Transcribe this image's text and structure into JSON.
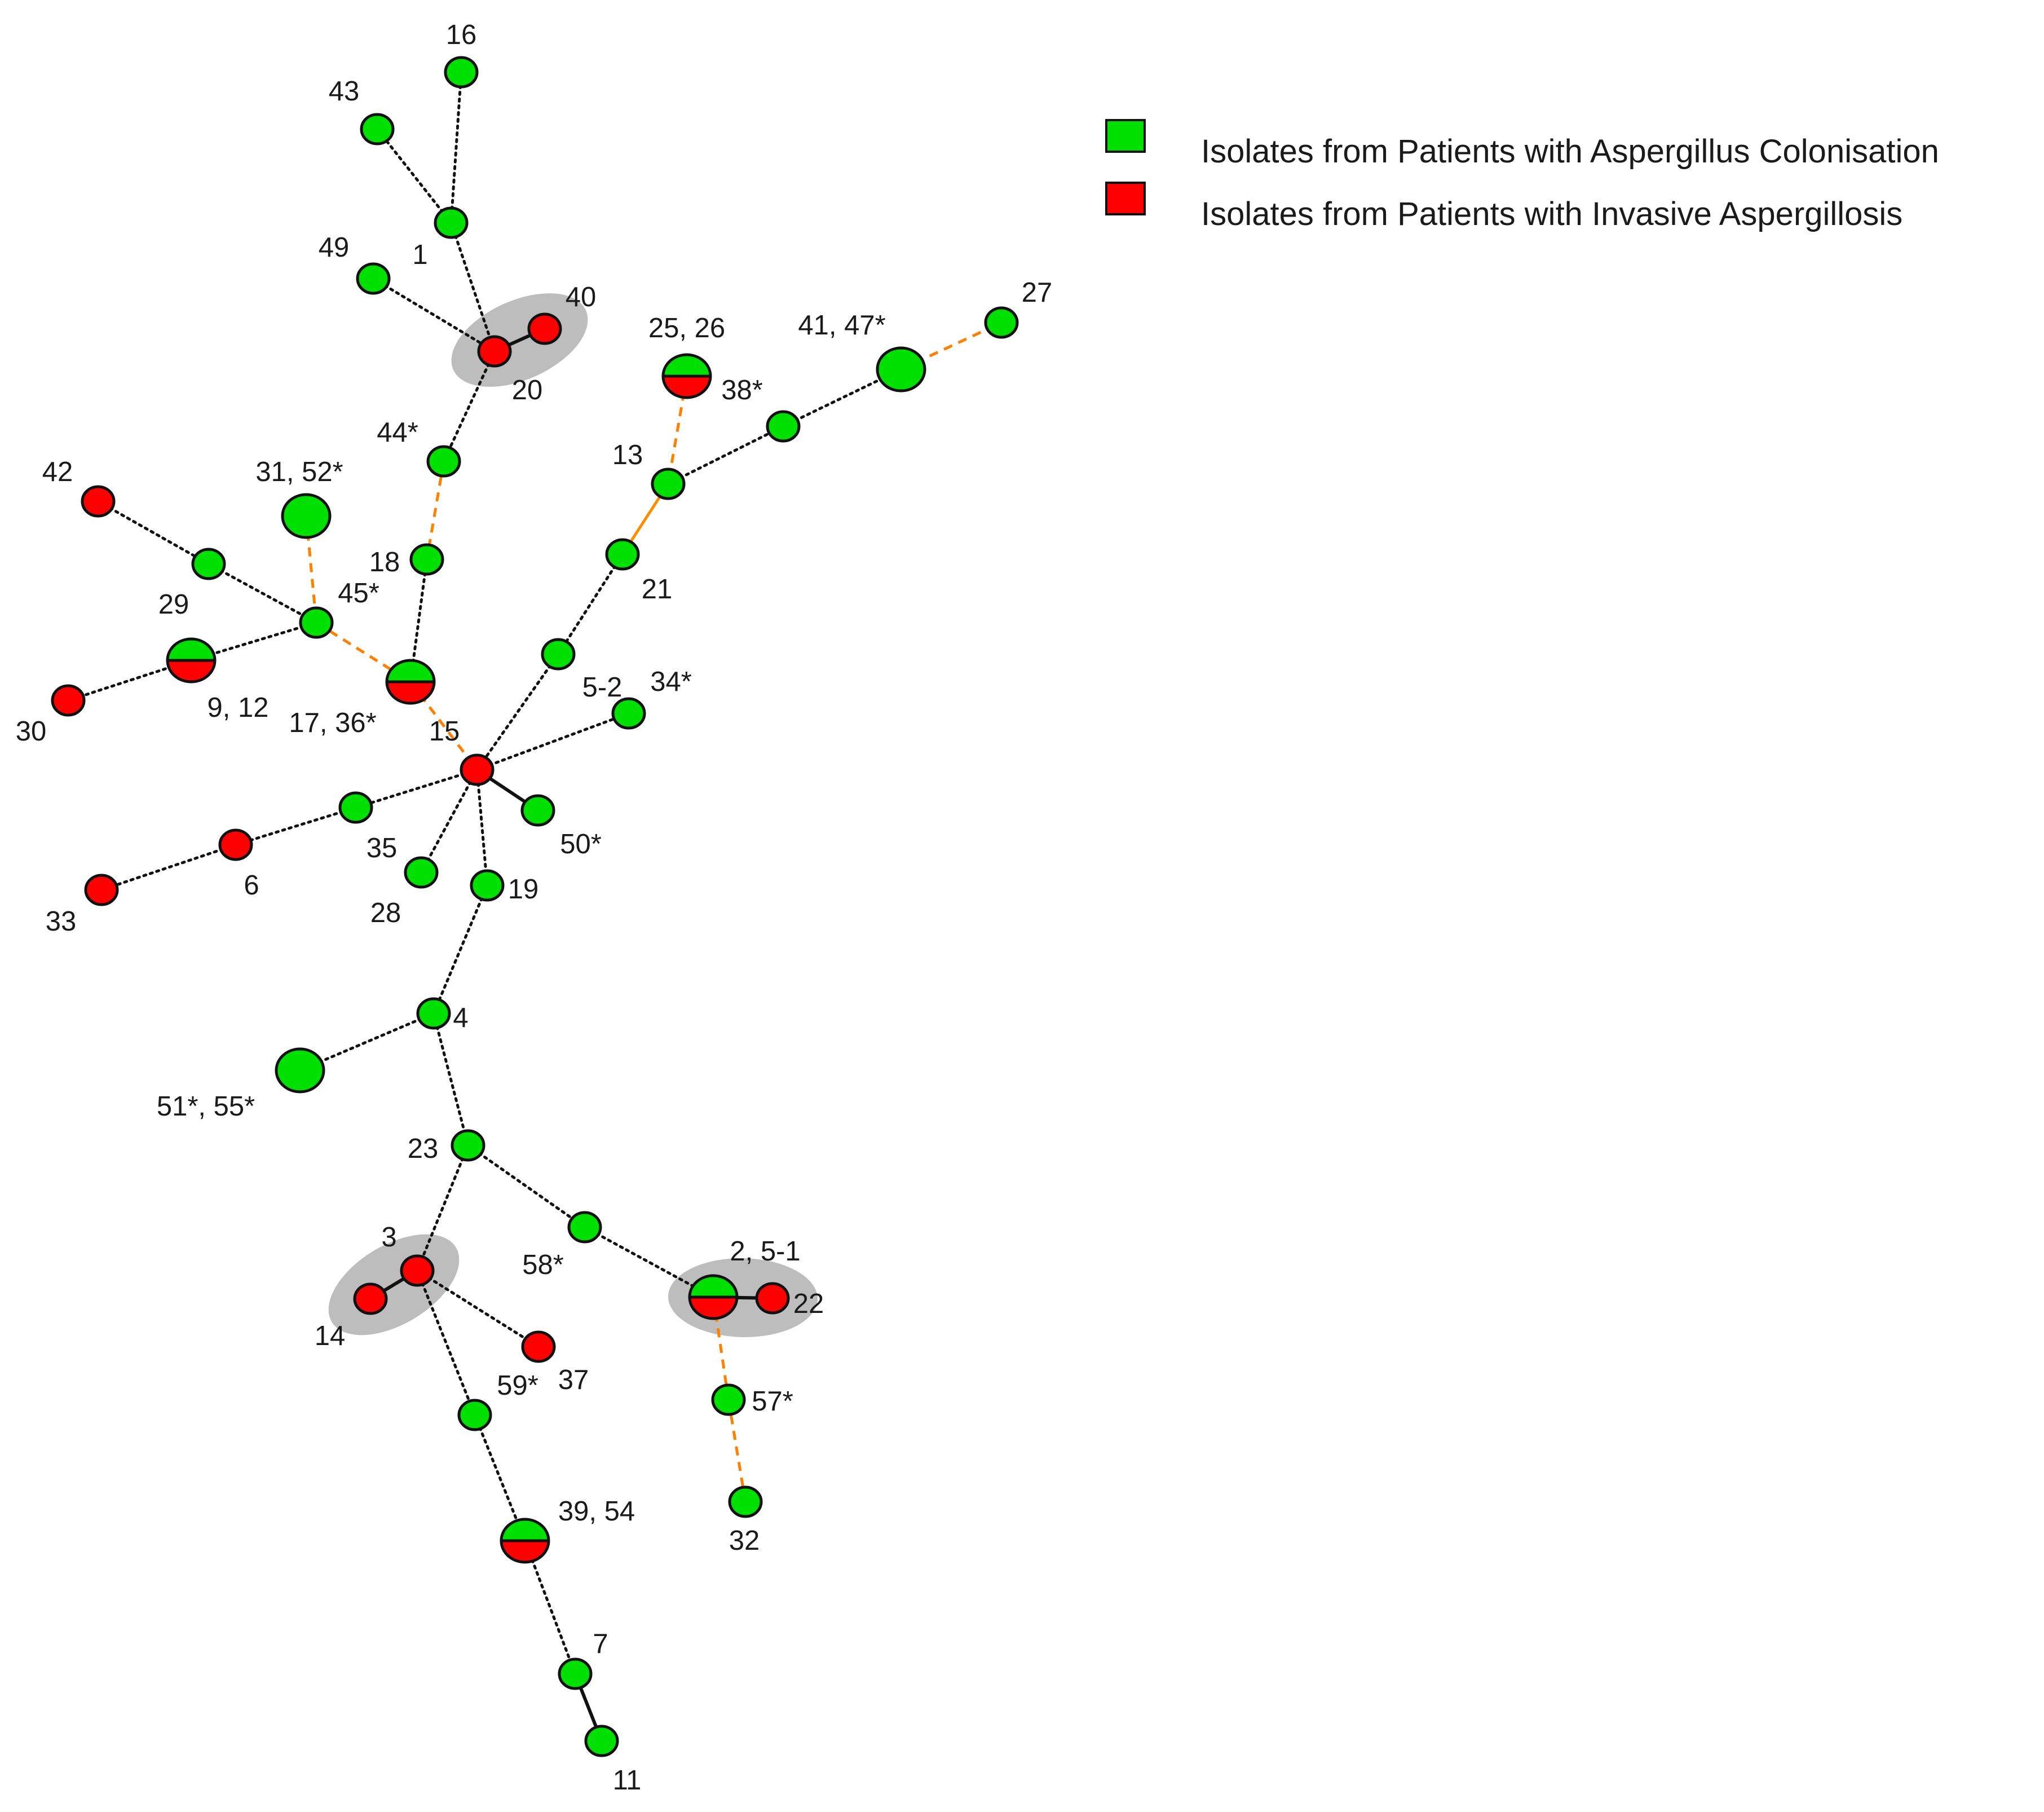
{
  "colors": {
    "colonisation": "#00e000",
    "invasive": "#ff0000",
    "cluster_halo": "#bdbdbd",
    "edge_dotted": "#111111",
    "edge_solid": "#111111",
    "edge_dashed": "#ff7f00",
    "edge_orange_solid": "#ff8c00"
  },
  "legend": {
    "items": [
      {
        "color": "#00e000",
        "label": "Isolates from Patients with Aspergillus Colonisation"
      },
      {
        "color": "#ff0000",
        "label": "Isolates from Patients with Invasive Aspergillosis"
      }
    ]
  },
  "nodes": [
    {
      "id": "16",
      "label": "16",
      "type": "colonisation"
    },
    {
      "id": "43",
      "label": "43",
      "type": "colonisation"
    },
    {
      "id": "1",
      "label": "1",
      "type": "colonisation"
    },
    {
      "id": "49",
      "label": "49",
      "type": "colonisation"
    },
    {
      "id": "20",
      "label": "20",
      "type": "invasive"
    },
    {
      "id": "40",
      "label": "40",
      "type": "invasive"
    },
    {
      "id": "44",
      "label": "44*",
      "type": "colonisation"
    },
    {
      "id": "18",
      "label": "18",
      "type": "colonisation"
    },
    {
      "id": "42",
      "label": "42",
      "type": "invasive"
    },
    {
      "id": "29",
      "label": "29",
      "type": "colonisation"
    },
    {
      "id": "3152",
      "label": "31, 52*",
      "type": "colonisation"
    },
    {
      "id": "45",
      "label": "45*",
      "type": "colonisation"
    },
    {
      "id": "912",
      "label": "9, 12",
      "type": "mixed"
    },
    {
      "id": "30",
      "label": "30",
      "type": "invasive"
    },
    {
      "id": "1736",
      "label": "17, 36*",
      "type": "mixed"
    },
    {
      "id": "15",
      "label": "15",
      "type": "invasive"
    },
    {
      "id": "2526",
      "label": "25, 26",
      "type": "mixed"
    },
    {
      "id": "38",
      "label": "38*",
      "type": "none"
    },
    {
      "id": "13",
      "label": "13",
      "type": "colonisation"
    },
    {
      "id": "m1",
      "label": "",
      "type": "colonisation"
    },
    {
      "id": "4147",
      "label": "41, 47*",
      "type": "colonisation"
    },
    {
      "id": "27",
      "label": "27",
      "type": "colonisation"
    },
    {
      "id": "21",
      "label": "21",
      "type": "colonisation"
    },
    {
      "id": "52b",
      "label": "5-2",
      "type": "colonisation"
    },
    {
      "id": "34",
      "label": "34*",
      "type": "colonisation"
    },
    {
      "id": "50",
      "label": "50*",
      "type": "colonisation"
    },
    {
      "id": "35",
      "label": "35",
      "type": "colonisation"
    },
    {
      "id": "6",
      "label": "6",
      "type": "invasive"
    },
    {
      "id": "33",
      "label": "33",
      "type": "invasive"
    },
    {
      "id": "28",
      "label": "28",
      "type": "colonisation"
    },
    {
      "id": "19",
      "label": "19",
      "type": "colonisation"
    },
    {
      "id": "4",
      "label": "4",
      "type": "colonisation"
    },
    {
      "id": "5155",
      "label": "51*, 55*",
      "type": "colonisation"
    },
    {
      "id": "23",
      "label": "23",
      "type": "colonisation"
    },
    {
      "id": "58",
      "label": "58*",
      "type": "colonisation"
    },
    {
      "id": "251",
      "label": "2, 5-1",
      "type": "mixed"
    },
    {
      "id": "22",
      "label": "22",
      "type": "invasive"
    },
    {
      "id": "3",
      "label": "3",
      "type": "invasive"
    },
    {
      "id": "14",
      "label": "14",
      "type": "invasive"
    },
    {
      "id": "37",
      "label": "37",
      "type": "invasive"
    },
    {
      "id": "59",
      "label": "59*",
      "type": "colonisation"
    },
    {
      "id": "57",
      "label": "57*",
      "type": "colonisation"
    },
    {
      "id": "32",
      "label": "32",
      "type": "colonisation"
    },
    {
      "id": "3954",
      "label": "39, 54",
      "type": "mixed"
    },
    {
      "id": "7",
      "label": "7",
      "type": "colonisation"
    },
    {
      "id": "11",
      "label": "11",
      "type": "colonisation"
    }
  ],
  "edges": [
    {
      "from": "1",
      "to": "16",
      "style": "dotted"
    },
    {
      "from": "1",
      "to": "43",
      "style": "dotted"
    },
    {
      "from": "1",
      "to": "20",
      "style": "dotted"
    },
    {
      "from": "49",
      "to": "20",
      "style": "dotted"
    },
    {
      "from": "20",
      "to": "40",
      "style": "solid"
    },
    {
      "from": "20",
      "to": "44",
      "style": "dotted"
    },
    {
      "from": "44",
      "to": "18",
      "style": "dashed"
    },
    {
      "from": "18",
      "to": "1736",
      "style": "dotted"
    },
    {
      "from": "42",
      "to": "29",
      "style": "dotted"
    },
    {
      "from": "29",
      "to": "45",
      "style": "dotted"
    },
    {
      "from": "3152",
      "to": "45",
      "style": "dashed"
    },
    {
      "from": "45",
      "to": "912",
      "style": "dotted"
    },
    {
      "from": "912",
      "to": "30",
      "style": "dotted"
    },
    {
      "from": "45",
      "to": "1736",
      "style": "dashed"
    },
    {
      "from": "1736",
      "to": "15",
      "style": "dashed"
    },
    {
      "from": "2526",
      "to": "13",
      "style": "dashed"
    },
    {
      "from": "13",
      "to": "m1",
      "style": "dotted"
    },
    {
      "from": "m1",
      "to": "4147",
      "style": "dotted"
    },
    {
      "from": "4147",
      "to": "27",
      "style": "dashed"
    },
    {
      "from": "13",
      "to": "21",
      "style": "orange"
    },
    {
      "from": "21",
      "to": "52b",
      "style": "dotted"
    },
    {
      "from": "52b",
      "to": "15",
      "style": "dotted"
    },
    {
      "from": "15",
      "to": "34",
      "style": "dotted"
    },
    {
      "from": "15",
      "to": "50",
      "style": "solid"
    },
    {
      "from": "15",
      "to": "35",
      "style": "dotted"
    },
    {
      "from": "35",
      "to": "6",
      "style": "dotted"
    },
    {
      "from": "6",
      "to": "33",
      "style": "dotted"
    },
    {
      "from": "15",
      "to": "28",
      "style": "dotted"
    },
    {
      "from": "15",
      "to": "19",
      "style": "dotted"
    },
    {
      "from": "19",
      "to": "4",
      "style": "dotted"
    },
    {
      "from": "4",
      "to": "5155",
      "style": "dotted"
    },
    {
      "from": "4",
      "to": "23",
      "style": "dotted"
    },
    {
      "from": "23",
      "to": "58",
      "style": "dotted"
    },
    {
      "from": "58",
      "to": "251",
      "style": "dotted"
    },
    {
      "from": "251",
      "to": "22",
      "style": "solid"
    },
    {
      "from": "251",
      "to": "57",
      "style": "dashed"
    },
    {
      "from": "57",
      "to": "32",
      "style": "dashed"
    },
    {
      "from": "23",
      "to": "3",
      "style": "dotted"
    },
    {
      "from": "3",
      "to": "14",
      "style": "solid"
    },
    {
      "from": "3",
      "to": "37",
      "style": "dotted"
    },
    {
      "from": "3",
      "to": "59",
      "style": "dotted"
    },
    {
      "from": "59",
      "to": "3954",
      "style": "dotted"
    },
    {
      "from": "3954",
      "to": "7",
      "style": "dotted"
    },
    {
      "from": "7",
      "to": "11",
      "style": "solid"
    }
  ]
}
